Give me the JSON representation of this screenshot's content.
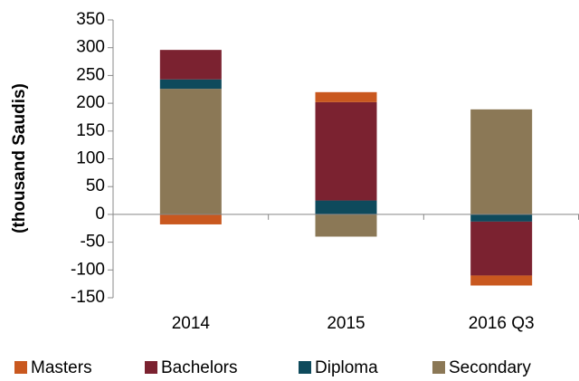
{
  "chart_data": {
    "type": "bar",
    "stacked": true,
    "y_axis_label": "(thousand Saudis)",
    "categories": [
      "2014",
      "2015",
      "2016 Q3"
    ],
    "series": [
      {
        "name": "Masters",
        "color": "#c9581f",
        "values": [
          -18,
          18,
          -18
        ]
      },
      {
        "name": "Bachelors",
        "color": "#7b2230",
        "values": [
          53,
          177,
          -97
        ]
      },
      {
        "name": "Diploma",
        "color": "#0e4a5c",
        "values": [
          17,
          25,
          -13
        ]
      },
      {
        "name": "Secondary",
        "color": "#8b7856",
        "values": [
          226,
          -40,
          189
        ]
      }
    ],
    "ylim": [
      -150,
      350
    ],
    "yticks": [
      -150,
      -100,
      -50,
      0,
      50,
      100,
      150,
      200,
      250,
      300,
      350
    ],
    "grid": false,
    "legend": "bottom"
  }
}
